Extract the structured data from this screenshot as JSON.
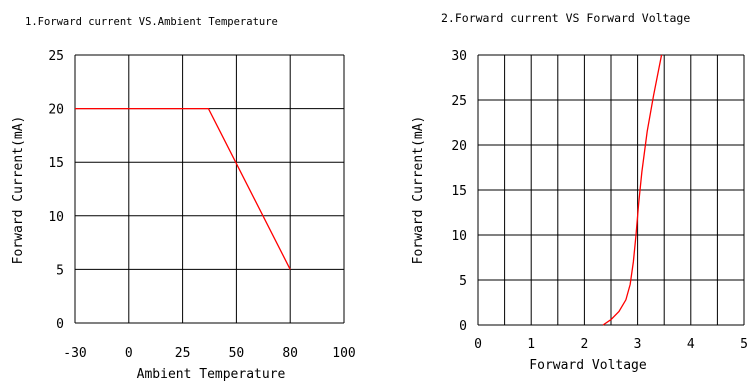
{
  "chart_data": [
    {
      "type": "line",
      "title": "1.Forward current VS.Ambient Temperature",
      "xlabel": "Ambient Temperature",
      "ylabel": "Forward Current(mA)",
      "xticks": [
        "-30",
        "0",
        "25",
        "50",
        "80",
        "100"
      ],
      "yticks": [
        "0",
        "5",
        "10",
        "15",
        "20",
        "25"
      ],
      "ylim": [
        0,
        25
      ],
      "grid": true,
      "series": [
        {
          "color": "#ff0000",
          "x": [
            "-30",
            "37",
            "80"
          ],
          "y": [
            20,
            20,
            5
          ]
        }
      ]
    },
    {
      "type": "line",
      "title": "2.Forward current VS Forward Voltage",
      "xlabel": "Forward Voltage",
      "ylabel": "Forward Current(mA)",
      "xticks": [
        "0",
        "1",
        "2",
        "3",
        "4",
        "5"
      ],
      "yticks": [
        "0",
        "5",
        "10",
        "15",
        "20",
        "25",
        "30"
      ],
      "xlim": [
        0,
        5
      ],
      "ylim": [
        0,
        30
      ],
      "grid": true,
      "series": [
        {
          "color": "#ff0000",
          "x": [
            2.35,
            2.5,
            2.65,
            2.78,
            2.86,
            2.92,
            2.97,
            3.02,
            3.08,
            3.18,
            3.3,
            3.45
          ],
          "y": [
            0,
            0.6,
            1.5,
            2.8,
            4.5,
            7,
            10,
            13.5,
            17,
            21.5,
            25.5,
            30
          ]
        }
      ]
    }
  ]
}
